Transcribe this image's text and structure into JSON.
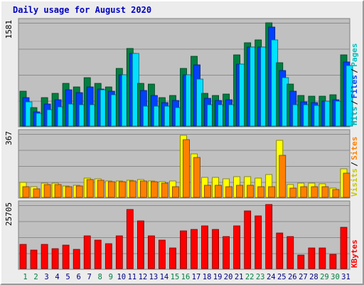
{
  "title": "Daily usage for August 2020",
  "chart_data": [
    {
      "type": "bar",
      "categories": [
        "1",
        "2",
        "3",
        "4",
        "5",
        "6",
        "7",
        "8",
        "9",
        "10",
        "11",
        "12",
        "13",
        "14",
        "15",
        "16",
        "17",
        "18",
        "19",
        "20",
        "21",
        "22",
        "23",
        "24",
        "25",
        "26",
        "27",
        "28",
        "29",
        "30",
        "31"
      ],
      "weekend_days": [
        "1",
        "2",
        "8",
        "9",
        "15",
        "16",
        "22",
        "23",
        "29",
        "30"
      ],
      "ymax_label": "1581",
      "ylim": [
        0,
        1581
      ],
      "series": [
        {
          "name": "Pages",
          "values": [
            530,
            280,
            430,
            500,
            650,
            600,
            740,
            650,
            600,
            880,
            1180,
            650,
            640,
            430,
            470,
            880,
            1060,
            500,
            470,
            490,
            1080,
            1270,
            1310,
            1570,
            960,
            640,
            470,
            450,
            450,
            480,
            1080
          ]
        },
        {
          "name": "Files",
          "values": [
            430,
            220,
            340,
            400,
            550,
            510,
            600,
            560,
            530,
            780,
            1100,
            540,
            470,
            360,
            390,
            780,
            930,
            420,
            390,
            400,
            940,
            1200,
            1200,
            1510,
            840,
            530,
            370,
            360,
            380,
            400,
            980
          ]
        },
        {
          "name": "Hits",
          "values": [
            370,
            190,
            250,
            290,
            340,
            330,
            320,
            550,
            480,
            780,
            1100,
            300,
            300,
            300,
            280,
            780,
            720,
            330,
            320,
            320,
            940,
            1200,
            1200,
            1310,
            740,
            330,
            320,
            310,
            380,
            380,
            920
          ]
        }
      ],
      "colors": {
        "Pages": "#008040",
        "Files": "#0040ff",
        "Hits": "#00e0ff"
      }
    },
    {
      "type": "bar",
      "categories": [
        "1",
        "2",
        "3",
        "4",
        "5",
        "6",
        "7",
        "8",
        "9",
        "10",
        "11",
        "12",
        "13",
        "14",
        "15",
        "16",
        "17",
        "18",
        "19",
        "20",
        "21",
        "22",
        "23",
        "24",
        "25",
        "26",
        "27",
        "28",
        "29",
        "30",
        "31"
      ],
      "ymax_label": "367",
      "ylim": [
        0,
        367
      ],
      "series": [
        {
          "name": "Visits",
          "values": [
            85,
            60,
            80,
            80,
            65,
            70,
            112,
            105,
            95,
            95,
            98,
            102,
            95,
            88,
            92,
            354,
            250,
            115,
            115,
            104,
            118,
            118,
            112,
            130,
            327,
            75,
            82,
            80,
            78,
            55,
            165
          ]
        },
        {
          "name": "Sites",
          "values": [
            60,
            50,
            72,
            73,
            60,
            65,
            102,
            98,
            88,
            88,
            92,
            95,
            88,
            80,
            60,
            332,
            228,
            70,
            70,
            60,
            70,
            70,
            60,
            60,
            242,
            55,
            60,
            60,
            60,
            46,
            140
          ]
        }
      ],
      "colors": {
        "Visits": "#ffff00",
        "Sites": "#ff8000"
      }
    },
    {
      "type": "bar",
      "categories": [
        "1",
        "2",
        "3",
        "4",
        "5",
        "6",
        "7",
        "8",
        "9",
        "10",
        "11",
        "12",
        "13",
        "14",
        "15",
        "16",
        "17",
        "18",
        "19",
        "20",
        "21",
        "22",
        "23",
        "24",
        "25",
        "26",
        "27",
        "28",
        "29",
        "30",
        "31"
      ],
      "ymax_label": "25705",
      "ylim": [
        0,
        25705
      ],
      "series": [
        {
          "name": "KBytes",
          "values": [
            9600,
            7300,
            9600,
            7900,
            9400,
            7800,
            13100,
            11300,
            10100,
            13100,
            23600,
            19200,
            13200,
            11500,
            8400,
            15000,
            15800,
            17000,
            15800,
            12900,
            17000,
            23200,
            21000,
            25705,
            14200,
            12800,
            5500,
            8400,
            8400,
            5800,
            16700
          ]
        }
      ],
      "colors": {
        "KBytes": "#ff0000"
      }
    }
  ]
}
